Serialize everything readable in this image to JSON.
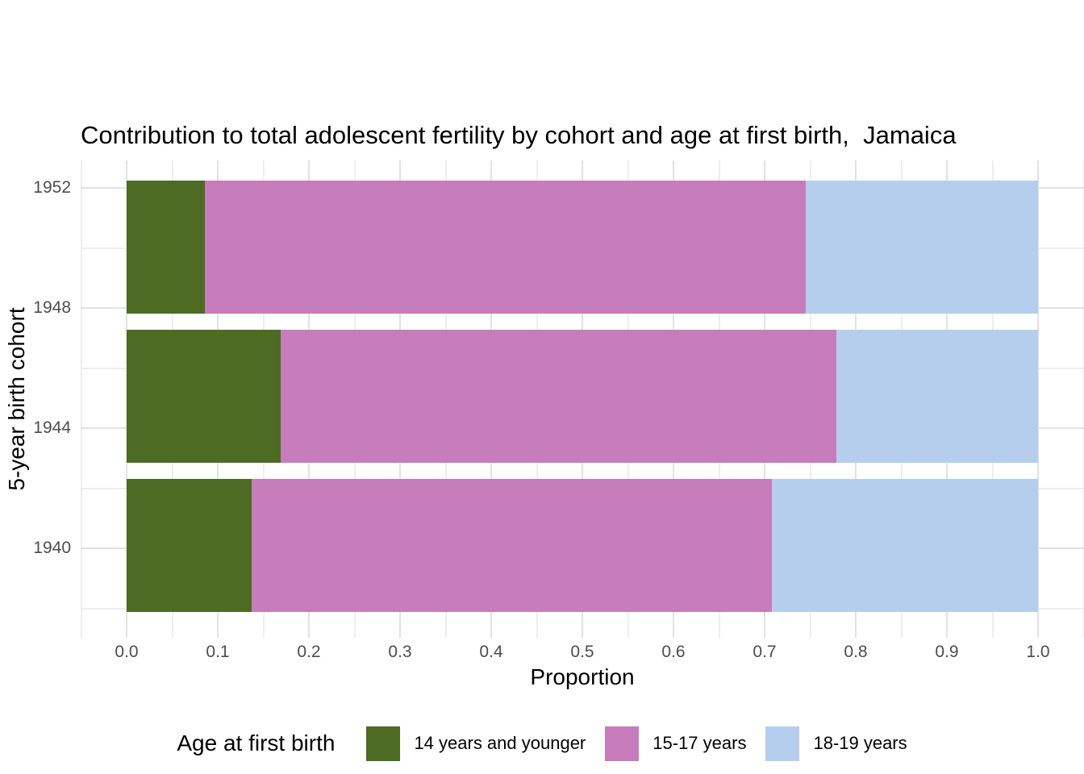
{
  "title": "Contribution to total adolescent fertility by cohort and age at first birth,  Jamaica",
  "axes": {
    "x_title": "Proportion",
    "y_title": "5-year birth cohort"
  },
  "legend": {
    "title": "Age at first birth",
    "position": "bottom"
  },
  "colors": {
    "age_14_and_younger": "#4d6b23",
    "age_15_17": "#c77cbc",
    "age_18_19": "#b5ceed",
    "grid_major": "#e2e2e2",
    "grid_minor": "#eeeeee",
    "tick_text": "#4d4d4d",
    "title_text": "#000000"
  },
  "chart_data": {
    "type": "bar",
    "orientation": "horizontal-stacked",
    "title": "Contribution to total adolescent fertility by cohort and age at first birth,  Jamaica",
    "xlabel": "Proportion",
    "ylabel": "5-year birth cohort",
    "xlim": [
      -0.05,
      1.05
    ],
    "grid": "major+minor, no axis lines (minimal theme)",
    "legend_position": "bottom",
    "x_major_ticks": [
      0.0,
      0.1,
      0.2,
      0.3,
      0.4,
      0.5,
      0.6,
      0.7,
      0.8,
      0.9,
      1.0
    ],
    "x_tick_labels": [
      "0.0",
      "0.1",
      "0.2",
      "0.3",
      "0.4",
      "0.5",
      "0.6",
      "0.7",
      "0.8",
      "0.9",
      "1.0"
    ],
    "x_minor_ticks": [
      -0.05,
      0.05,
      0.15,
      0.25,
      0.35,
      0.45,
      0.55,
      0.65,
      0.75,
      0.85,
      0.95,
      1.05
    ],
    "y_tick_labels": [
      "1952",
      "1948",
      "1944",
      "1940"
    ],
    "y_tick_values": [
      1952,
      1948,
      1944,
      1940
    ],
    "bar_cohort_centers": [
      1950,
      1945,
      1940
    ],
    "series": [
      {
        "name": "14 years and younger",
        "color": "#4d6b23",
        "values": [
          0.086,
          0.169,
          0.137
        ]
      },
      {
        "name": "15-17 years",
        "color": "#c77cbc",
        "values": [
          0.659,
          0.61,
          0.571
        ]
      },
      {
        "name": "18-19 years",
        "color": "#b5ceed",
        "values": [
          0.255,
          0.221,
          0.292
        ]
      }
    ]
  }
}
